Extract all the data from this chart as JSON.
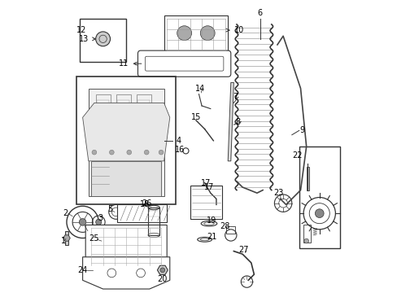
{
  "title": "",
  "background_color": "#ffffff",
  "fig_width": 4.89,
  "fig_height": 3.6,
  "dpi": 100,
  "line_color": "#333333",
  "text_color": "#000000",
  "font_size": 7
}
